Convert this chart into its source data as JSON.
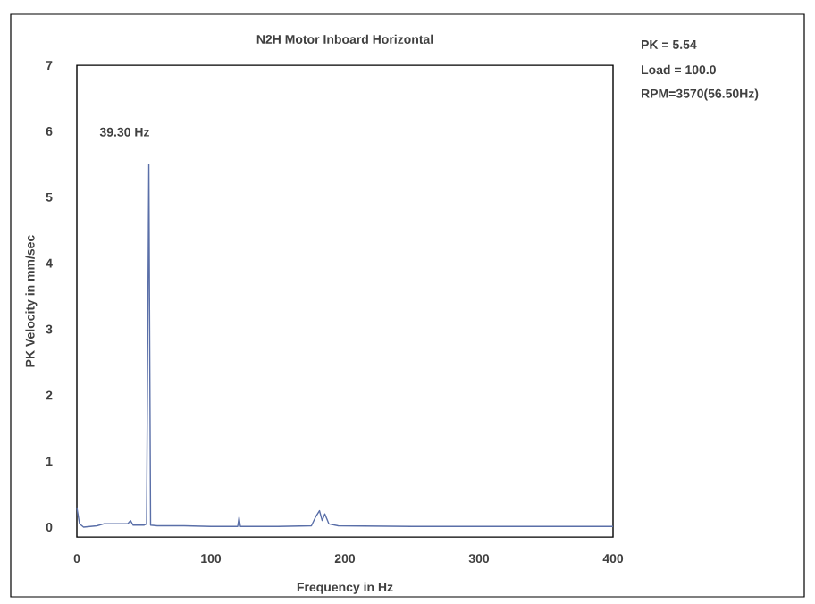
{
  "chart_data": {
    "type": "line",
    "title": "N2H Motor Inboard Horizontal",
    "xlabel": "Frequency in Hz",
    "ylabel": "PK Velocity in mm/sec",
    "xlim": [
      0,
      400
    ],
    "ylim": [
      -0.15,
      7
    ],
    "xticks": [
      0,
      100,
      200,
      300,
      400
    ],
    "yticks": [
      0,
      1,
      2,
      3,
      4,
      5,
      6,
      7
    ],
    "grid": false,
    "marker": "none",
    "line_style": "solid",
    "series": [
      {
        "color": "#5a6fa8",
        "x": [
          0,
          2,
          5,
          15,
          20,
          30,
          38,
          40,
          42,
          50,
          52,
          53.7,
          55,
          60,
          80,
          100,
          120,
          121,
          122,
          150,
          175,
          178,
          181,
          183,
          185,
          188,
          195,
          250,
          300,
          400
        ],
        "values": [
          0.3,
          0.05,
          0,
          0.02,
          0.05,
          0.05,
          0.05,
          0.1,
          0.03,
          0.03,
          0.05,
          5.5,
          0.03,
          0.02,
          0.02,
          0.01,
          0.01,
          0.15,
          0.01,
          0.01,
          0.02,
          0.15,
          0.25,
          0.1,
          0.2,
          0.05,
          0.02,
          0.01,
          0.01,
          0.01
        ]
      }
    ],
    "annotations": [
      {
        "text": "39.30 Hz",
        "x": 53.7,
        "y": 5.5
      },
      "PK = 5.54",
      "Load = 100.0",
      "RPM=3570(56.50Hz)"
    ]
  }
}
